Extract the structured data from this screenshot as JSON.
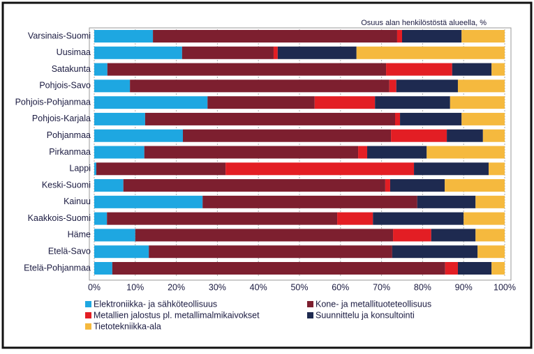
{
  "chart_data": {
    "type": "stacked-bar-horizontal",
    "subtitle": "Osuus alan henkilöstöstä alueella, %",
    "categories": [
      "Varsinais-Suomi",
      "Uusimaa",
      "Satakunta",
      "Pohjois-Savo",
      "Pohjois-Pohjanmaa",
      "Pohjois-Karjala",
      "Pohjanmaa",
      "Pirkanmaa",
      "Lappi",
      "Keski-Suomi",
      "Kainuu",
      "Kaakkois-Suomi",
      "Häme",
      "Etelä-Savo",
      "Etelä-Pohjanmaa"
    ],
    "series": [
      {
        "name": "Elektroniikka- ja sähköteollisuus",
        "color": "#1ea7e1",
        "values": [
          14.3,
          21.4,
          3.2,
          8.7,
          27.6,
          12.4,
          21.6,
          12.2,
          0.5,
          7.1,
          26.4,
          3.1,
          10,
          13.3,
          4.4
        ]
      },
      {
        "name": "Kone- ja metallituoteteollisuus",
        "color": "#7d1f2f",
        "values": [
          59.5,
          22.3,
          67.9,
          63.2,
          26.1,
          60.9,
          50.7,
          52.1,
          31.5,
          63.8,
          52.3,
          56.1,
          62.8,
          59.3,
          81.1
        ]
      },
      {
        "name": "Metallien jalostus pl. metallimalmikaivokset",
        "color": "#e31e24",
        "values": [
          1.2,
          1.0,
          16.1,
          1.7,
          14.7,
          1.2,
          13.6,
          2.2,
          45.9,
          1.2,
          0,
          8.7,
          9.3,
          0,
          3.1
        ]
      },
      {
        "name": "Suunnittelu ja konsultointi",
        "color": "#1e2a50",
        "values": [
          14.5,
          19.2,
          9.6,
          15,
          18.3,
          15,
          8.8,
          14.5,
          18.2,
          13.3,
          14.2,
          22.1,
          10.8,
          20.8,
          8.2
        ]
      },
      {
        "name": "Tietotekniikka-ala",
        "color": "#f5b93e",
        "values": [
          10.5,
          36.1,
          3.2,
          11.4,
          13.3,
          10.5,
          5.3,
          19,
          3.9,
          14.6,
          7.1,
          10,
          7.1,
          6.6,
          3.2
        ]
      }
    ],
    "xlim": [
      0,
      100
    ],
    "xticks": [
      {
        "value": 0,
        "label": "0%"
      },
      {
        "value": 10,
        "label": "10%"
      },
      {
        "value": 20,
        "label": "20%"
      },
      {
        "value": 30,
        "label": "30%"
      },
      {
        "value": 40,
        "label": "40%"
      },
      {
        "value": 50,
        "label": "50%"
      },
      {
        "value": 60,
        "label": "60%"
      },
      {
        "value": 70,
        "label": "70%"
      },
      {
        "value": 80,
        "label": "80%"
      },
      {
        "value": 90,
        "label": "90%"
      },
      {
        "value": 100,
        "label": "100%"
      }
    ],
    "grid": true
  }
}
